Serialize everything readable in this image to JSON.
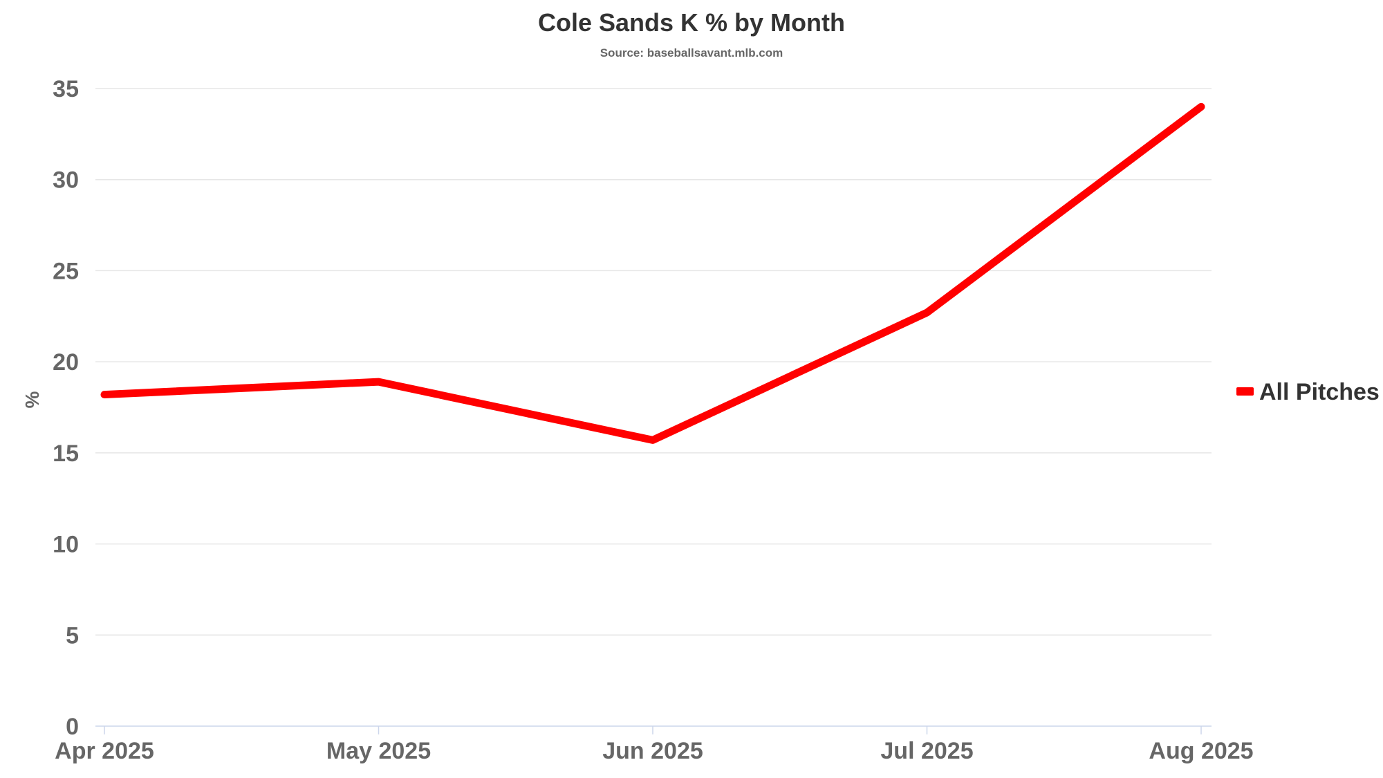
{
  "chart_data": {
    "type": "line",
    "title": "Cole Sands K % by Month",
    "subtitle": "Source: baseballsavant.mlb.com",
    "xlabel": "",
    "ylabel": "%",
    "categories": [
      "Apr 2025",
      "May 2025",
      "Jun 2025",
      "Jul 2025",
      "Aug 2025"
    ],
    "series": [
      {
        "name": "All Pitches",
        "color": "#ff0000",
        "values": [
          18.2,
          18.9,
          15.7,
          22.7,
          34.0
        ]
      }
    ],
    "ylim": [
      0,
      35
    ],
    "yticks": [
      0,
      5,
      10,
      15,
      20,
      25,
      30,
      35
    ],
    "grid": true,
    "legend": "right"
  }
}
